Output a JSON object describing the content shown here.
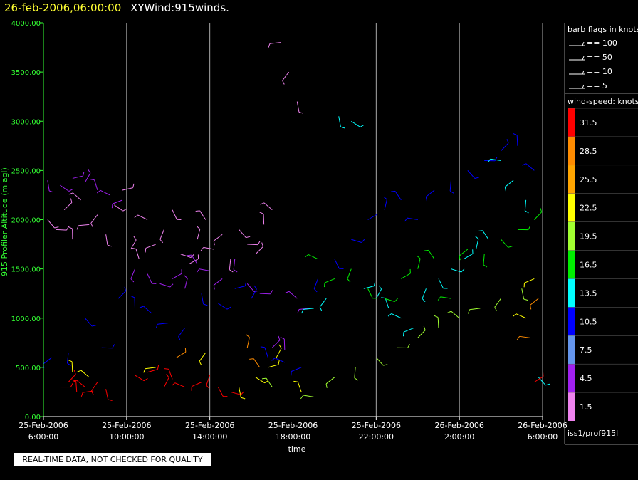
{
  "header": {
    "datetime": "26-feb-2006,06:00:00",
    "title": "XYWind:915winds."
  },
  "footer": {
    "quality_note": "REAL-TIME DATA, NOT CHECKED FOR QUALITY"
  },
  "legend": {
    "barb_title": "barb flags in knots",
    "barbs": [
      "== 100",
      "== 50",
      "== 10",
      "== 5"
    ],
    "speed_title": "wind-speed: knots",
    "speed_levels": [
      "31.5",
      "28.5",
      "25.5",
      "22.5",
      "19.5",
      "16.5",
      "13.5",
      "10.5",
      "7.5",
      "4.5",
      "1.5"
    ],
    "speed_colors": [
      "#ff0000",
      "#ff8c00",
      "#ffa500",
      "#ffff00",
      "#a0ff30",
      "#00ee00",
      "#00ffff",
      "#0000ff",
      "#6495ed",
      "#a020f0",
      "#ee82ee"
    ],
    "source": "iss1/prof915l"
  },
  "chart_data": {
    "type": "scatter",
    "title": "XYWind:915winds.",
    "xlabel": "time",
    "ylabel": "915 Profiler Altitude (m agl)",
    "ylim": [
      0,
      4000
    ],
    "xlim": [
      "25-Feb-2006 6:00:00",
      "26-Feb-2006 6:00:00"
    ],
    "x_tick_labels": [
      [
        "25-Feb-2006",
        "6:00:00"
      ],
      [
        "25-Feb-2006",
        "10:00:00"
      ],
      [
        "25-Feb-2006",
        "14:00:00"
      ],
      [
        "25-Feb-2006",
        "18:00:00"
      ],
      [
        "25-Feb-2006",
        "22:00:00"
      ],
      [
        "26-Feb-2006",
        "2:00:00"
      ],
      [
        "26-Feb-2006",
        "6:00:00"
      ]
    ],
    "y_tick_labels": [
      "0.00",
      "500.00",
      "1000.00",
      "1500.00",
      "2000.00",
      "2500.00",
      "3000.00",
      "3500.00",
      "4000.00"
    ],
    "grid": "vertical",
    "series": [
      {
        "color_index": 10,
        "hours": [
          0.2,
          0.6,
          1.0,
          1.4,
          1.8,
          2.2,
          2.6,
          3.0,
          3.4,
          3.8,
          4.2,
          4.6,
          5.0,
          5.4,
          5.8,
          6.2,
          6.6,
          7.0,
          7.4,
          7.8,
          8.2,
          8.6,
          9.0,
          9.4,
          9.8,
          10.2,
          10.6,
          11.0,
          11.4,
          11.8,
          12.2
        ],
        "altitude_m": [
          2000,
          1900,
          2100,
          1800,
          2200,
          1950,
          2050,
          1850,
          2150,
          2300,
          1700,
          1600,
          2000,
          1750,
          1900,
          2100,
          1650,
          1550,
          1800,
          2000,
          1700,
          1850,
          1600,
          1900,
          1750,
          1650,
          1950,
          2100,
          3800,
          3500,
          3200
        ]
      },
      {
        "color_index": 9,
        "hours": [
          0.2,
          0.8,
          1.4,
          2.0,
          2.6,
          3.2,
          3.8,
          4.4,
          5.0,
          5.6,
          6.2,
          6.8,
          7.4,
          8.0,
          8.6,
          9.2,
          9.8,
          10.4,
          11.0,
          11.6,
          12.2,
          12.8
        ],
        "altitude_m": [
          2400,
          2350,
          2420,
          2380,
          2300,
          2250,
          2200,
          1500,
          1450,
          1350,
          1400,
          1300,
          1550,
          1480,
          1400,
          1600,
          1350,
          1250,
          700,
          680,
          1200,
          1100
        ]
      },
      {
        "color_index": 7,
        "hours": [
          0.4,
          1.2,
          2.0,
          2.8,
          3.6,
          4.4,
          5.2,
          6.0,
          6.8,
          7.6,
          8.4,
          9.2,
          10.0,
          10.8,
          11.6,
          12.4,
          13.2,
          14.0,
          14.8,
          15.6,
          16.4,
          17.2,
          18.0,
          18.8,
          19.6,
          20.4,
          21.2,
          22.0,
          22.8,
          23.6
        ],
        "altitude_m": [
          600,
          650,
          1000,
          700,
          1200,
          1100,
          1050,
          950,
          900,
          1250,
          1150,
          1300,
          1200,
          600,
          550,
          500,
          1400,
          1600,
          1800,
          2000,
          2100,
          2200,
          2000,
          2300,
          2400,
          2500,
          2600,
          2700,
          2750,
          2500
        ]
      },
      {
        "color_index": 6,
        "hours": [
          13.0,
          13.6,
          14.2,
          14.8,
          15.4,
          16.0,
          16.6,
          17.2,
          17.8,
          18.4,
          19.0,
          19.6,
          20.2,
          20.8,
          21.4,
          22.0,
          22.6,
          23.2,
          23.8
        ],
        "altitude_m": [
          1100,
          1200,
          3050,
          3000,
          1300,
          1200,
          1100,
          1000,
          900,
          1300,
          1400,
          1500,
          1600,
          1700,
          1800,
          2600,
          2400,
          2200,
          400
        ]
      },
      {
        "color_index": 5,
        "hours": [
          13.2,
          14.0,
          14.8,
          15.6,
          16.4,
          17.2,
          18.0,
          18.8,
          19.6,
          20.4,
          21.2,
          22.0,
          22.8,
          23.6
        ],
        "altitude_m": [
          1600,
          1400,
          1500,
          1300,
          1200,
          1400,
          1500,
          1600,
          1200,
          1700,
          1650,
          1800,
          1900,
          2000
        ]
      },
      {
        "color_index": 4,
        "hours": [
          11.0,
          13.0,
          14.0,
          15.0,
          16.0,
          17.0,
          18.0,
          19.0,
          20.0,
          21.0,
          22.0,
          23.0
        ],
        "altitude_m": [
          300,
          200,
          400,
          500,
          600,
          700,
          800,
          900,
          1000,
          1100,
          1200,
          1300
        ]
      },
      {
        "color_index": 3,
        "hours": [
          1.4,
          2.2,
          5.4,
          7.8,
          9.4,
          10.2,
          10.8,
          11.2,
          12.4,
          23.2,
          23.6
        ],
        "altitude_m": [
          450,
          400,
          500,
          650,
          300,
          400,
          500,
          600,
          250,
          1000,
          1400
        ]
      },
      {
        "color_index": 1,
        "hours": [
          6.4,
          9.8,
          10.4,
          23.4,
          23.8
        ],
        "altitude_m": [
          600,
          700,
          500,
          800,
          1200
        ]
      },
      {
        "color_index": 0,
        "hours": [
          0.8,
          1.2,
          1.6,
          2.0,
          2.4,
          2.6,
          3.0,
          4.4,
          5.0,
          5.8,
          6.2,
          6.8,
          7.6,
          8.0,
          8.4,
          9.0,
          23.6
        ],
        "altitude_m": [
          300,
          350,
          250,
          300,
          260,
          350,
          280,
          420,
          450,
          300,
          380,
          300,
          350,
          420,
          300,
          250,
          350
        ]
      }
    ]
  }
}
